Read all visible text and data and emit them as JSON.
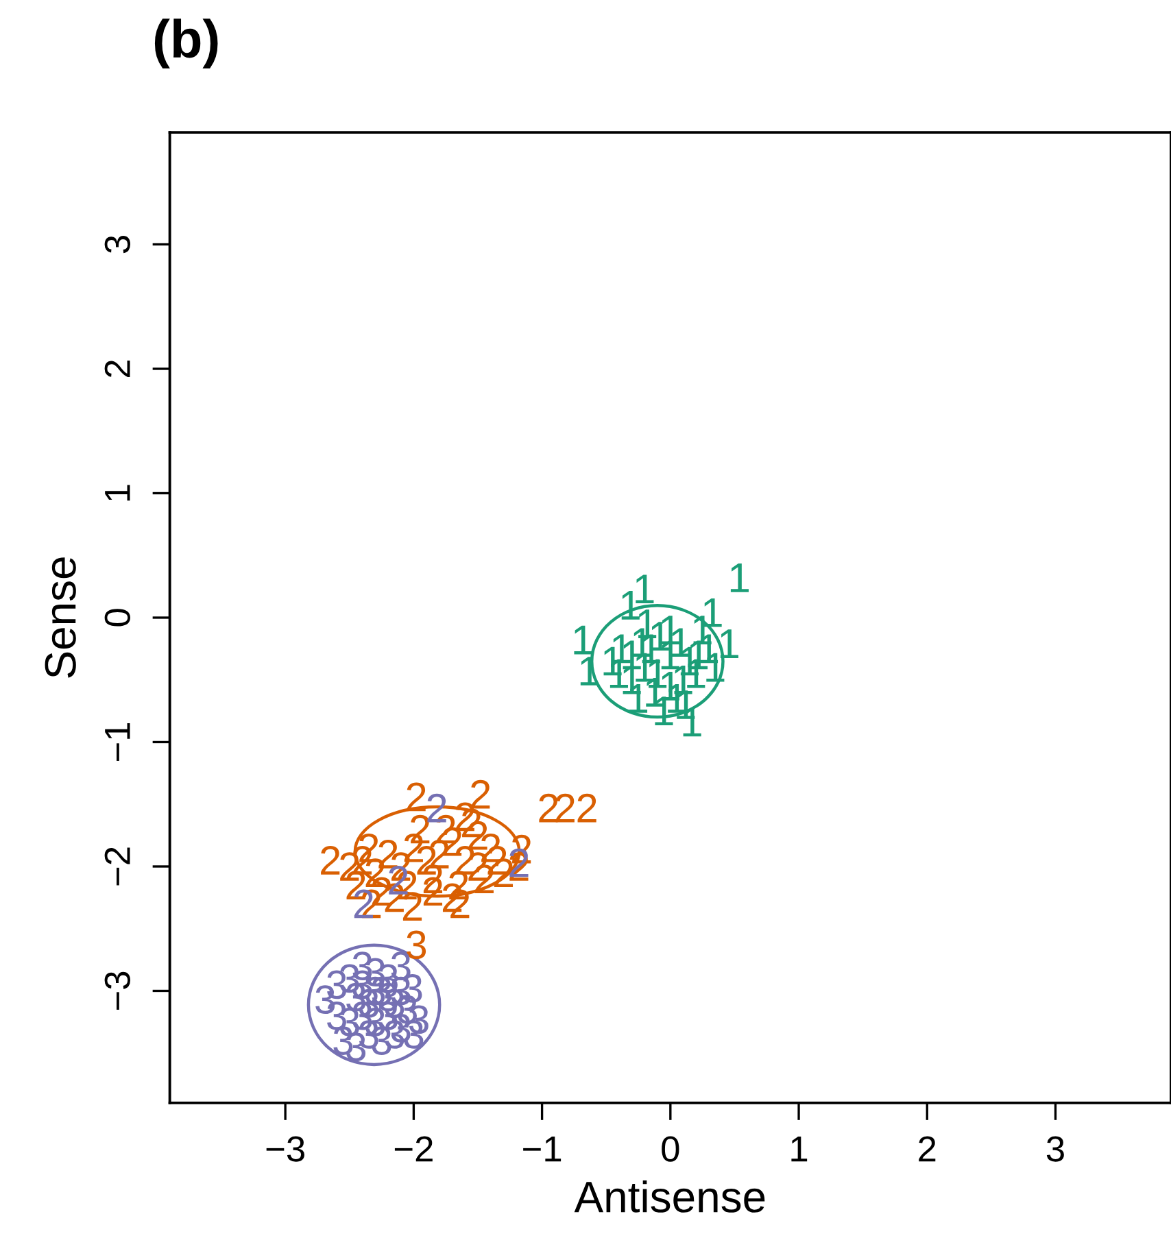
{
  "chart_data": {
    "type": "scatter",
    "title": "(b)",
    "xlabel": "Antisense",
    "ylabel": "Sense",
    "xlim": [
      -3.9,
      3.9
    ],
    "ylim": [
      -3.9,
      3.9
    ],
    "xticks": [
      {
        "value": -3,
        "label": "−3"
      },
      {
        "value": -2,
        "label": "−2"
      },
      {
        "value": -1,
        "label": "−1"
      },
      0,
      1,
      2,
      3
    ],
    "yticks": [
      {
        "value": -3,
        "label": "−3"
      },
      {
        "value": -2,
        "label": "−2"
      },
      {
        "value": -1,
        "label": "−1"
      },
      0,
      1,
      2,
      3
    ],
    "grid": false,
    "legend": false,
    "series": [
      {
        "name": "1",
        "color": "#1b9e77",
        "x": [
          0.54,
          -0.2,
          -0.31,
          0.33,
          -0.68,
          -0.63,
          0.46,
          0.17,
          -0.45,
          -0.38,
          -0.3,
          -0.22,
          -0.15,
          -0.08,
          0.0,
          0.08,
          0.15,
          0.22,
          0.3,
          -0.4,
          -0.3,
          -0.2,
          -0.1,
          0.0,
          0.1,
          0.2,
          -0.25,
          -0.12,
          0.05,
          0.12,
          -0.18,
          0.25,
          0.35,
          0.0,
          -0.05
        ],
        "values": [
          0.32,
          0.23,
          0.1,
          0.04,
          -0.18,
          -0.43,
          -0.21,
          -0.84,
          -0.35,
          -0.25,
          -0.3,
          -0.2,
          -0.25,
          -0.15,
          -0.3,
          -0.2,
          -0.35,
          -0.3,
          -0.25,
          -0.45,
          -0.5,
          -0.4,
          -0.45,
          -0.55,
          -0.5,
          -0.45,
          -0.65,
          -0.6,
          -0.65,
          -0.7,
          -0.05,
          -0.1,
          -0.4,
          -0.1,
          -0.75
        ]
      },
      {
        "name": "2",
        "color": "#d95f02",
        "x": [
          -0.95,
          -0.82,
          -0.65,
          -1.48,
          -1.98,
          -2.65,
          -1.16,
          -1.18,
          -2.33,
          -2.01,
          -1.64,
          -2.5,
          -2.4,
          -2.3,
          -2.2,
          -2.1,
          -2.0,
          -1.9,
          -1.8,
          -1.7,
          -1.6,
          -1.5,
          -1.4,
          -1.3,
          -2.45,
          -2.25,
          -2.05,
          -1.85,
          -1.65,
          -1.45,
          -1.75,
          -1.95,
          -1.55,
          -1.35,
          -2.15,
          -1.7,
          -1.85,
          -1.6,
          -2.35,
          -1.5
        ],
        "values": [
          -1.53,
          -1.53,
          -1.53,
          -1.42,
          -1.44,
          -1.95,
          -1.86,
          -2.0,
          -2.3,
          -2.32,
          -2.3,
          -2.0,
          -1.95,
          -2.05,
          -1.9,
          -2.0,
          -1.85,
          -1.95,
          -1.9,
          -1.8,
          -1.95,
          -2.0,
          -1.85,
          -2.05,
          -2.15,
          -2.2,
          -2.15,
          -2.1,
          -2.15,
          -2.1,
          -1.7,
          -1.7,
          -1.65,
          -1.95,
          -2.25,
          -2.25,
          -2.2,
          -1.6,
          -1.85,
          -1.75
        ]
      },
      {
        "name": "3",
        "color": "#d95f02",
        "x": [
          -1.98
        ],
        "values": [
          -2.63
        ]
      },
      {
        "name": "3",
        "color": "#7570b3",
        "x": [
          -2.69,
          -2.01,
          -1.96,
          -2.55,
          -2.5,
          -2.4,
          -2.3,
          -2.2,
          -2.1,
          -2.45,
          -2.35,
          -2.25,
          -2.15,
          -2.05,
          -2.4,
          -2.3,
          -2.2,
          -2.1,
          -2.5,
          -2.35,
          -2.25,
          -2.15,
          -2.6,
          -2.0,
          -2.45,
          -2.3,
          -2.2,
          -2.4,
          -2.1,
          -2.6
        ],
        "values": [
          -3.07,
          -2.98,
          -3.23,
          -3.4,
          -2.9,
          -2.95,
          -2.85,
          -2.9,
          -3.0,
          -3.05,
          -3.1,
          -3.0,
          -3.1,
          -3.15,
          -3.2,
          -3.25,
          -3.2,
          -3.3,
          -3.25,
          -3.35,
          -3.4,
          -3.35,
          -3.2,
          -3.35,
          -3.45,
          -3.0,
          -3.05,
          -2.8,
          -2.8,
          -2.95
        ]
      },
      {
        "name": "2",
        "color": "#7570b3",
        "x": [
          -1.82,
          -1.18,
          -2.39,
          -2.12
        ],
        "values": [
          -1.53,
          -1.97,
          -2.3,
          -2.11
        ]
      }
    ]
  }
}
